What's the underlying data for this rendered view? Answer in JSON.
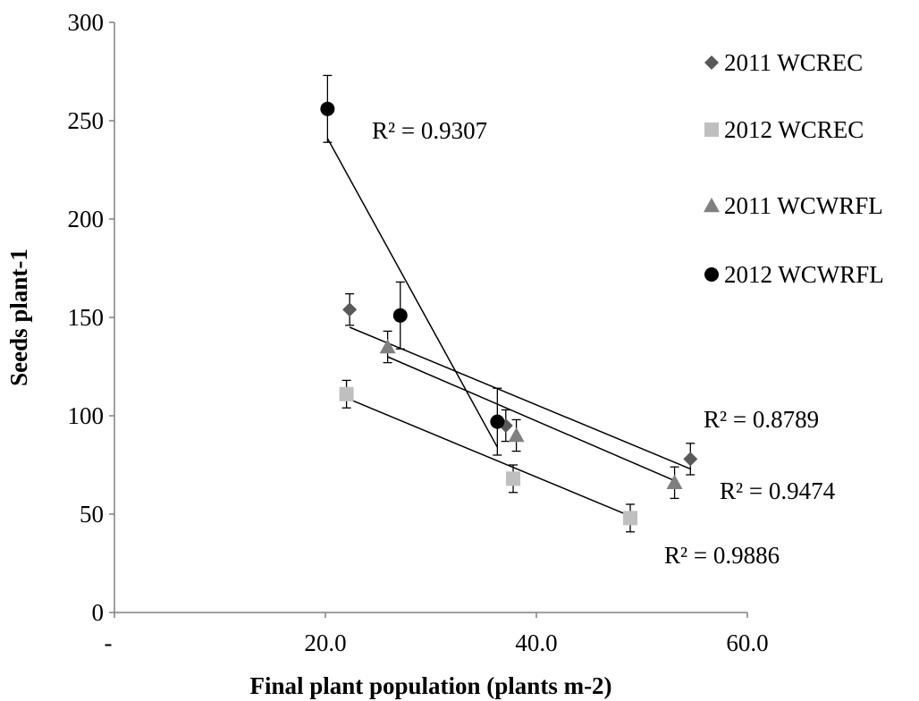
{
  "chart_data": {
    "type": "scatter",
    "title": "",
    "xlabel": "Final plant population (plants m-2)",
    "ylabel": "Seeds plant-1",
    "xlim": [
      0,
      60
    ],
    "ylim": [
      0,
      300
    ],
    "x_ticks": [
      {
        "value": 0,
        "label": "-"
      },
      {
        "value": 20,
        "label": "20.0"
      },
      {
        "value": 40,
        "label": "40.0"
      },
      {
        "value": 60,
        "label": "60.0"
      }
    ],
    "y_ticks": [
      0,
      50,
      100,
      150,
      200,
      250,
      300
    ],
    "grid": false,
    "legend_position": "right",
    "series": [
      {
        "name": "2011 WCREC",
        "marker": "diamond",
        "color": "#595959",
        "points": [
          {
            "x": 22.3,
            "y": 154,
            "err": 8
          },
          {
            "x": 37.1,
            "y": 95,
            "err": 8
          },
          {
            "x": 54.6,
            "y": 78,
            "err": 8
          }
        ],
        "trendline": {
          "x": [
            22.3,
            54.6
          ],
          "y": [
            145,
            73
          ]
        },
        "r_squared": "R² = 0.8789"
      },
      {
        "name": "2012 WCREC",
        "marker": "square",
        "color": "#bfbfbf",
        "points": [
          {
            "x": 22.0,
            "y": 111,
            "err": 7
          },
          {
            "x": 37.8,
            "y": 68,
            "err": 7
          },
          {
            "x": 48.9,
            "y": 48,
            "err": 7
          }
        ],
        "trendline": {
          "x": [
            22.0,
            48.9
          ],
          "y": [
            109,
            49
          ]
        },
        "r_squared": "R² = 0.9886"
      },
      {
        "name": "2011 WCWRFL",
        "marker": "triangle",
        "color": "#808080",
        "points": [
          {
            "x": 25.9,
            "y": 135,
            "err": 8
          },
          {
            "x": 38.1,
            "y": 90,
            "err": 8
          },
          {
            "x": 53.1,
            "y": 66,
            "err": 8
          }
        ],
        "trendline": {
          "x": [
            25.9,
            53.1
          ],
          "y": [
            130,
            67
          ]
        },
        "r_squared": "R² = 0.9474"
      },
      {
        "name": "2012 WCWRFL",
        "marker": "circle",
        "color": "#000000",
        "points": [
          {
            "x": 20.2,
            "y": 256,
            "err": 17
          },
          {
            "x": 27.1,
            "y": 151,
            "err": 17
          },
          {
            "x": 36.3,
            "y": 97,
            "err": 17
          }
        ],
        "trendline": {
          "x": [
            20.2,
            36.3
          ],
          "y": [
            241,
            84
          ]
        },
        "r_squared": "R² = 0.9307"
      }
    ]
  }
}
